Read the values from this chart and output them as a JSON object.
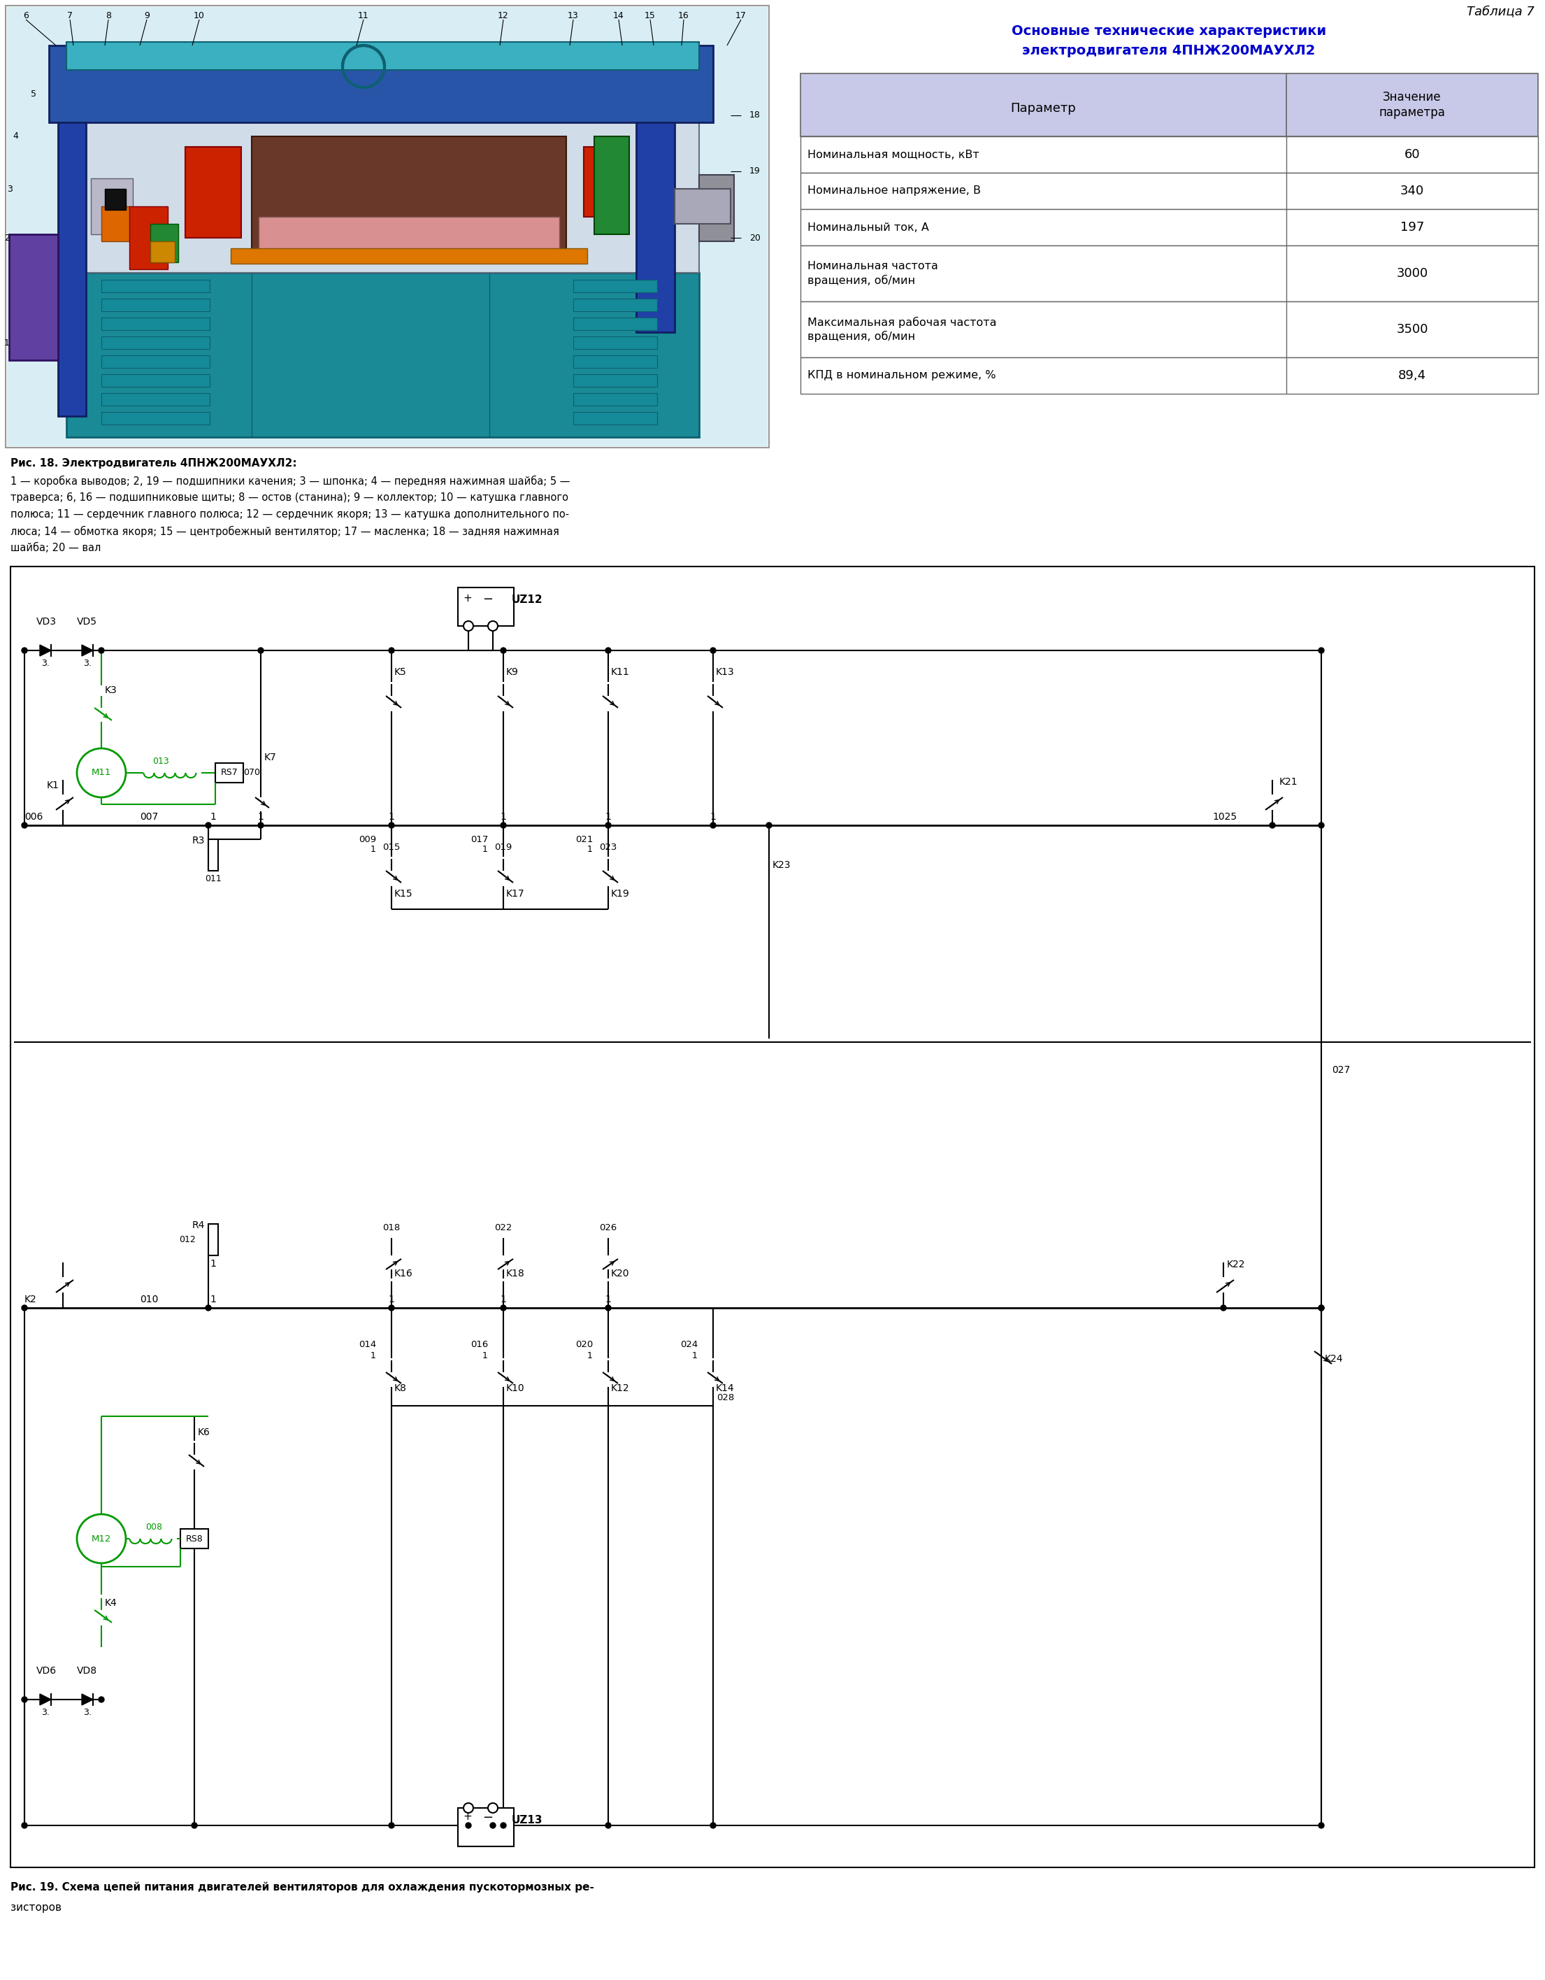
{
  "page_bg": "#ffffff",
  "table_title": "Таблица 7",
  "table_header_title_line1": "Основные технические характеристики",
  "table_header_title_line2": "электродвигателя 4ПНЖ200МАУХЛ2",
  "table_header_color": "#0000cc",
  "table_header_bg": "#c8c8e8",
  "table_col1_header": "Параметр",
  "table_col2_header": "Значение\nпараметра",
  "table_rows": [
    [
      "Номинальная мощность, кВт",
      "60"
    ],
    [
      "Номинальное напряжение, В",
      "340"
    ],
    [
      "Номинальный ток, А",
      "197"
    ],
    [
      "Номинальная частота\nвращения, об/мин",
      "3000"
    ],
    [
      "Максимальная рабочая частота\nвращения, об/мин",
      "3500"
    ],
    [
      "КПД в номинальном режиме, %",
      "89,4"
    ]
  ],
  "fig18_bold": "Рис. 18. Электродвигатель 4ПНЖ200МАУХЛ2:",
  "fig18_lines": [
    "1 — коробка выводов; 2, 19 — подшипники качения; 3 — шпонка; 4 — передняя нажимная шайба; 5 —",
    "траверса; 6, 16 — подшипниковые щиты; 8 — остов (станина); 9 — коллектор; 10 — катушка главного",
    "полюса; 11 — сердечник главного полюса; 12 — сердечник якоря; 13 — катушка дополнительного по-",
    "люса; 14 — обмотка якоря; 15 — центробежный вентилятор; 17 — масленка; 18 — задняя нажимная",
    "шайба; 20 — вал"
  ],
  "fig19_bold": "Рис. 19. Схема цепей питания двигателей вентиляторов для охлаждения пускотормозных ре-",
  "fig19_normal": "зисторов",
  "green": "#009900",
  "black": "#000000",
  "teal_main": "#1a8a96",
  "teal_dark": "#0e6070",
  "teal_light": "#3ab0c0",
  "blue_dark": "#1a2a7a",
  "blue_mid": "#2040a0",
  "blue_light": "#4878c8",
  "gray_light": "#c8d8e0",
  "purple": "#6040a0",
  "red_coil": "#cc2200",
  "orange_coil": "#dd7700",
  "green_part": "#228833",
  "pink_arm": "#d89090",
  "brown_arm": "#7a4030",
  "shaft_gray": "#a8a8b8",
  "header_bg": "#d0d8f0"
}
